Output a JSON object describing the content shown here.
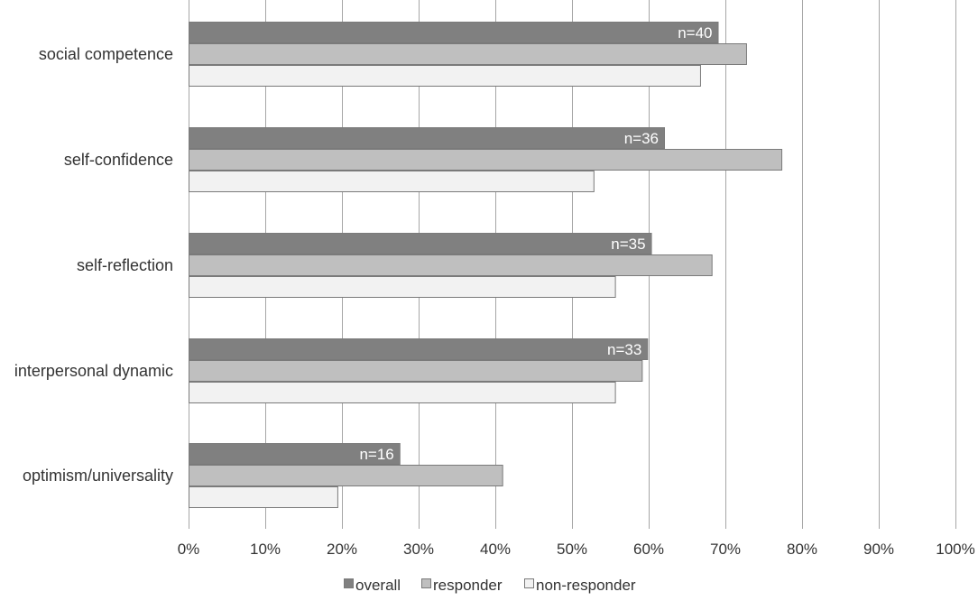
{
  "chart_data": {
    "type": "bar",
    "orientation": "horizontal",
    "categories": [
      "social competence",
      "self-confidence",
      "self-reflection",
      "interpersonal dynamic",
      "optimism/universality"
    ],
    "series": [
      {
        "name": "overall",
        "color": "#808080",
        "values": [
          69,
          62,
          60.3,
          59.8,
          27.5
        ]
      },
      {
        "name": "responder",
        "color": "#bfbfbf",
        "values": [
          72.7,
          77.3,
          68.2,
          59.1,
          40.9
        ]
      },
      {
        "name": "non-responder",
        "color": "#f2f2f2",
        "values": [
          66.7,
          52.8,
          55.6,
          55.6,
          19.4
        ]
      }
    ],
    "annotations": [
      "n=40",
      "n=36",
      "n=35",
      "n=33",
      "n=16"
    ],
    "xlim": [
      0,
      100
    ],
    "x_ticks": [
      "0%",
      "10%",
      "20%",
      "30%",
      "40%",
      "50%",
      "60%",
      "70%",
      "80%",
      "90%",
      "100%"
    ],
    "grid": "vertical",
    "legend_position": "bottom",
    "title": "",
    "xlabel": "",
    "ylabel": ""
  }
}
